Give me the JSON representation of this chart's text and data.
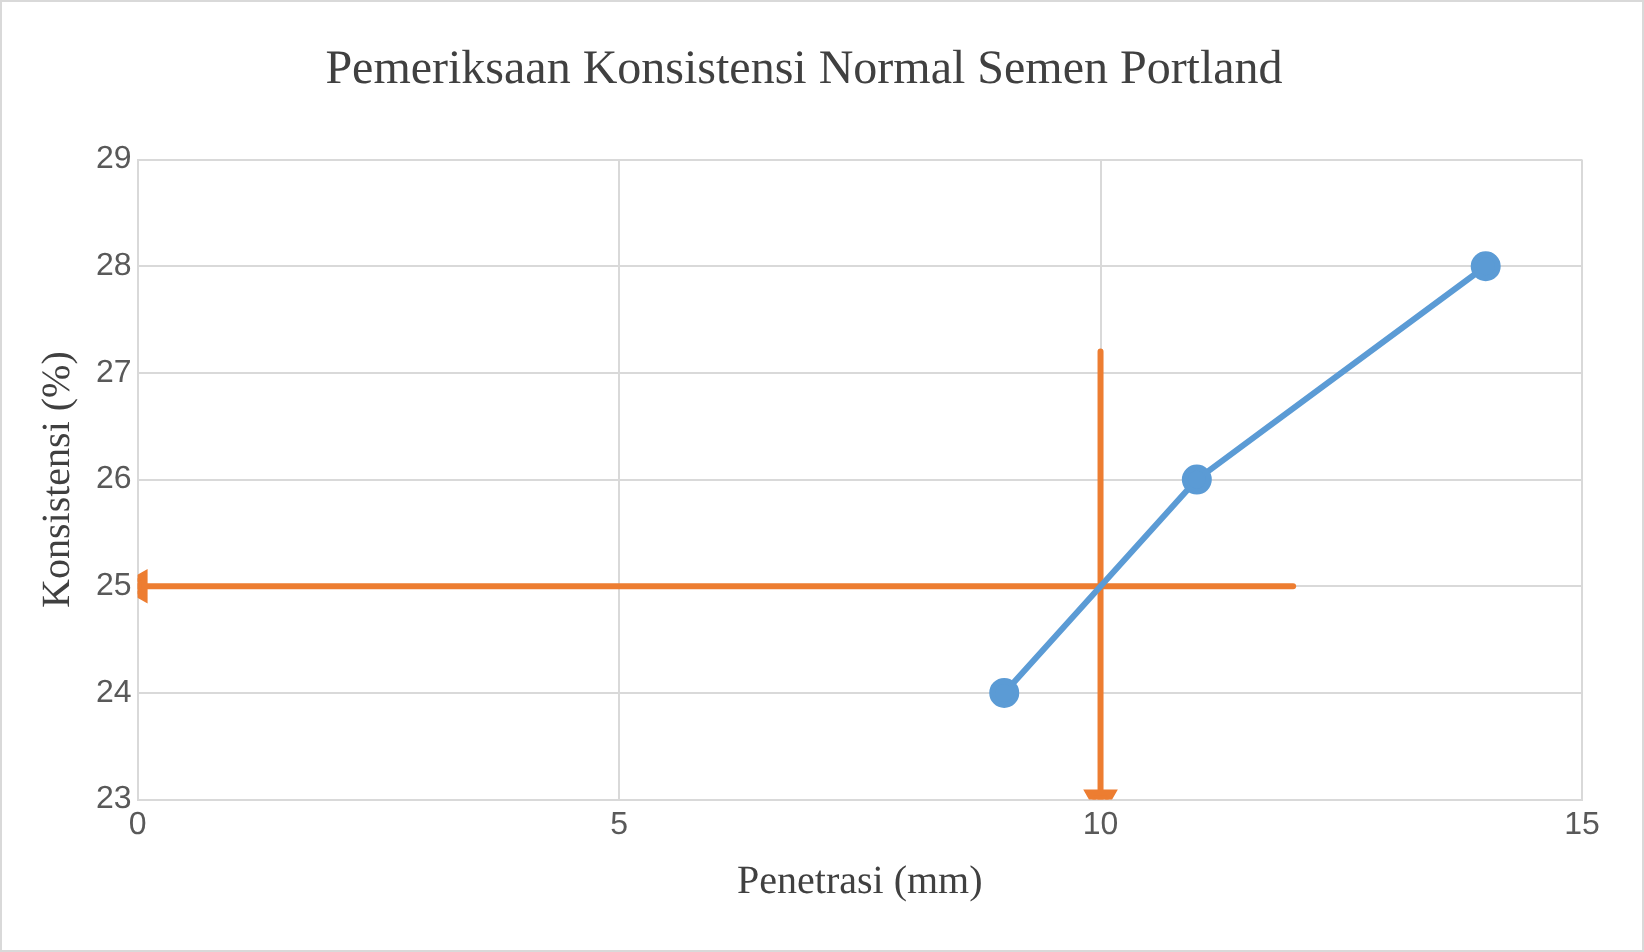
{
  "chart_data": {
    "type": "line",
    "title": "Pemeriksaan Konsistensi Normal Semen Portland",
    "xlabel": "Penetrasi (mm)",
    "ylabel": "Konsistensi (%)",
    "series": [
      {
        "x": [
          9,
          11,
          14
        ],
        "values": [
          24,
          26,
          28
        ],
        "color": "#5b9bd5",
        "marker": "circle"
      },
      {
        "x": [
          12,
          0
        ],
        "values": [
          25,
          25
        ],
        "color": "#ed7d31",
        "marker": "triangle"
      },
      {
        "x": [
          10,
          10
        ],
        "values": [
          27.2,
          23
        ],
        "color": "#ed7d31",
        "marker": "triangle"
      }
    ],
    "xlim": [
      0,
      15
    ],
    "xticks": [
      0,
      5,
      10,
      15
    ],
    "ylim": [
      23,
      29
    ],
    "yticks": [
      23,
      24,
      25,
      26,
      27,
      28,
      29
    ],
    "grid": true,
    "legend": false,
    "line_style": "solid"
  }
}
